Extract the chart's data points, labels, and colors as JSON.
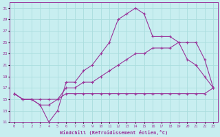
{
  "xlabel": "Windchill (Refroidissement éolien,°C)",
  "bg_color": "#c8eef0",
  "grid_color": "#aadddd",
  "line_color": "#993399",
  "xlim": [
    -0.5,
    23.5
  ],
  "ylim": [
    11,
    32
  ],
  "xticks": [
    0,
    1,
    2,
    3,
    4,
    5,
    6,
    7,
    8,
    9,
    10,
    11,
    12,
    13,
    14,
    15,
    16,
    17,
    18,
    19,
    20,
    21,
    22,
    23
  ],
  "yticks": [
    11,
    13,
    15,
    17,
    19,
    21,
    23,
    25,
    27,
    29,
    31
  ],
  "line1_x": [
    0,
    1,
    2,
    3,
    4,
    5,
    6,
    7,
    8,
    9,
    10,
    11,
    12,
    13,
    14,
    15,
    16,
    17,
    18,
    19,
    20,
    21,
    22,
    23
  ],
  "line1_y": [
    16,
    15,
    15,
    14,
    11,
    13,
    18,
    18,
    20,
    21,
    23,
    25,
    29,
    30,
    31,
    30,
    26,
    26,
    26,
    25,
    22,
    21,
    19,
    17
  ],
  "line2_x": [
    0,
    1,
    2,
    3,
    4,
    5,
    6,
    7,
    8,
    9,
    10,
    11,
    12,
    13,
    14,
    15,
    16,
    17,
    18,
    19,
    20,
    21,
    22,
    23
  ],
  "line2_y": [
    16,
    15,
    15,
    14,
    14,
    15,
    17,
    17,
    18,
    18,
    19,
    20,
    21,
    22,
    23,
    23,
    24,
    24,
    24,
    25,
    25,
    25,
    22,
    17
  ],
  "line3_x": [
    0,
    1,
    2,
    3,
    4,
    5,
    6,
    7,
    8,
    9,
    10,
    11,
    12,
    13,
    14,
    15,
    16,
    17,
    18,
    19,
    20,
    21,
    22,
    23
  ],
  "line3_y": [
    16,
    15,
    15,
    15,
    15,
    15,
    16,
    16,
    16,
    16,
    16,
    16,
    16,
    16,
    16,
    16,
    16,
    16,
    16,
    16,
    16,
    16,
    16,
    17
  ]
}
